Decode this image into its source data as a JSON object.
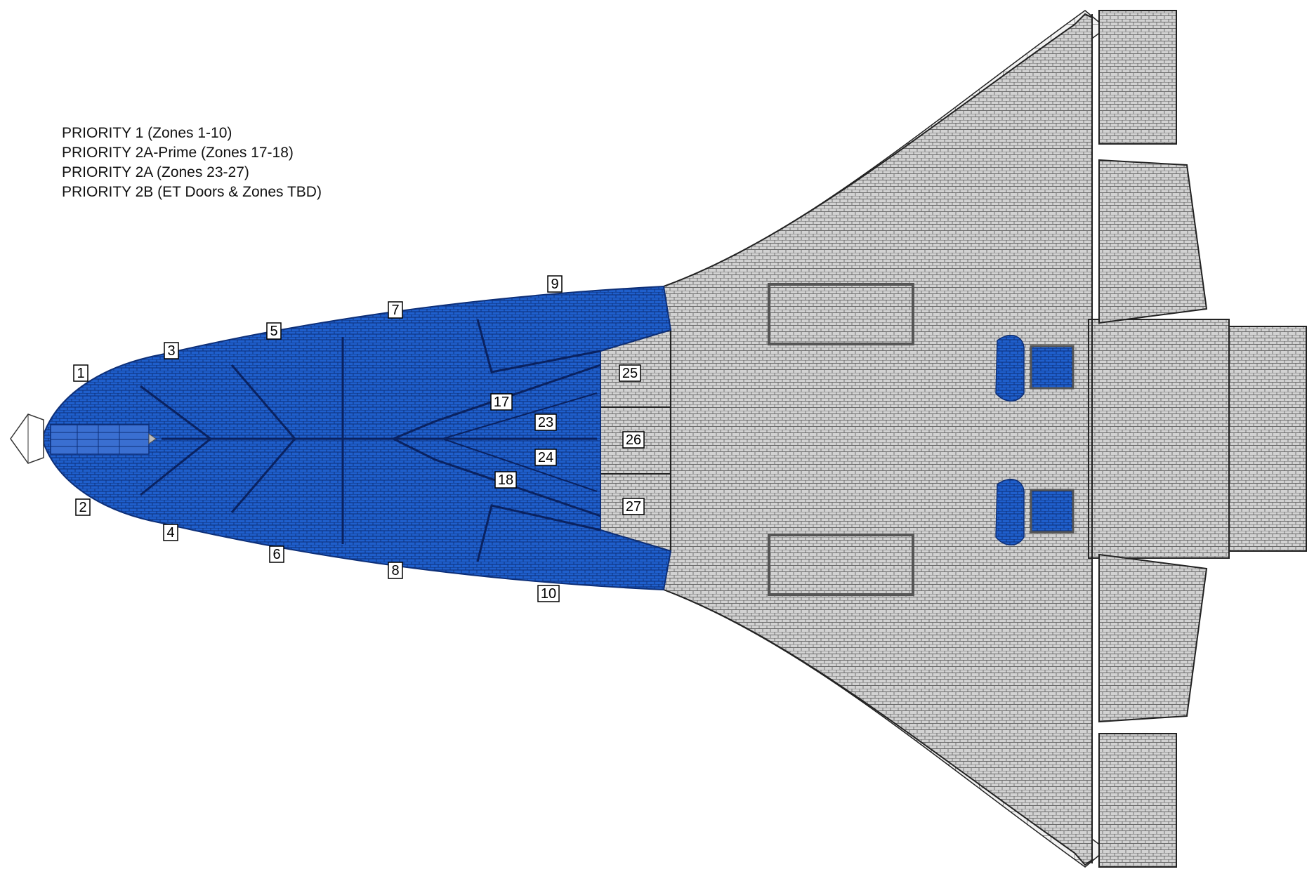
{
  "legend": [
    "PRIORITY 1 (Zones 1-10)",
    "PRIORITY 2A-Prime (Zones 17-18)",
    "PRIORITY 2A (Zones 23-27)",
    "PRIORITY 2B (ET Doors & Zones TBD)"
  ],
  "zones": {
    "z1": "1",
    "z2": "2",
    "z3": "3",
    "z4": "4",
    "z5": "5",
    "z6": "6",
    "z7": "7",
    "z8": "8",
    "z9": "9",
    "z10": "10",
    "z17": "17",
    "z18": "18",
    "z23": "23",
    "z24": "24",
    "z25": "25",
    "z26": "26",
    "z27": "27"
  },
  "colors": {
    "priority_blue": "#1a5bc8",
    "tile_gray": "#cfcfcf",
    "outline": "#222222"
  }
}
